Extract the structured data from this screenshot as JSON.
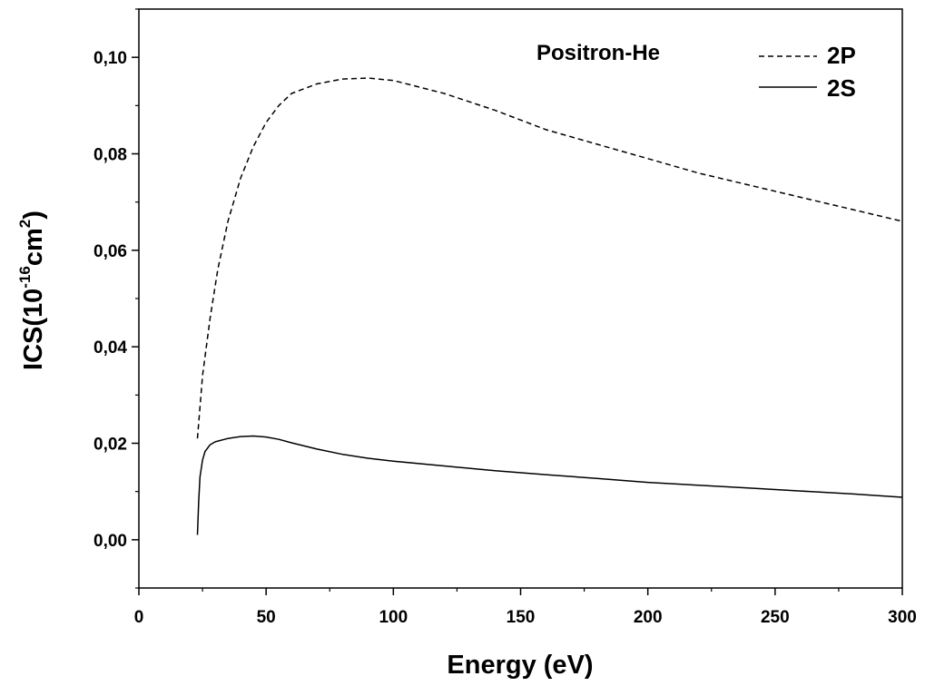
{
  "chart_data": {
    "type": "line",
    "title": "",
    "annotation": "Positron-He",
    "xlabel": "Energy (eV)",
    "ylabel": {
      "prefix": "ICS(10",
      "exp1": "-16",
      "mid": "cm",
      "exp2": "2",
      "suffix": ")"
    },
    "xlim": [
      0,
      300
    ],
    "ylim": [
      -0.01,
      0.11
    ],
    "x_ticks": [
      0,
      50,
      100,
      150,
      200,
      250,
      300
    ],
    "x_tick_labels": [
      "0",
      "50",
      "100",
      "150",
      "200",
      "250",
      "300"
    ],
    "y_ticks": [
      0.0,
      0.02,
      0.04,
      0.06,
      0.08,
      0.1
    ],
    "y_tick_labels": [
      "0,00",
      "0,02",
      "0,04",
      "0,06",
      "0,08",
      "0,10"
    ],
    "grid": false,
    "legend_position": "top-right",
    "series": [
      {
        "name": "2P",
        "style": "dashed",
        "x": [
          23,
          25,
          28,
          31,
          35,
          40,
          45,
          50,
          55,
          60,
          70,
          80,
          90,
          100,
          120,
          140,
          160,
          180,
          200,
          220,
          240,
          260,
          280,
          300
        ],
        "y": [
          0.021,
          0.034,
          0.046,
          0.056,
          0.066,
          0.075,
          0.0815,
          0.0865,
          0.09,
          0.0925,
          0.0945,
          0.0955,
          0.0957,
          0.0952,
          0.0925,
          0.089,
          0.085,
          0.082,
          0.079,
          0.076,
          0.0735,
          0.071,
          0.0685,
          0.066
        ]
      },
      {
        "name": "2S",
        "style": "solid",
        "x": [
          23,
          23.5,
          24,
          25,
          26,
          28,
          30,
          35,
          40,
          45,
          50,
          55,
          60,
          70,
          80,
          90,
          100,
          120,
          140,
          160,
          180,
          200,
          220,
          240,
          260,
          280,
          300
        ],
        "y": [
          0.001,
          0.008,
          0.013,
          0.0165,
          0.0183,
          0.0197,
          0.0203,
          0.021,
          0.0214,
          0.0215,
          0.0213,
          0.0208,
          0.0201,
          0.0188,
          0.0177,
          0.0169,
          0.0163,
          0.0153,
          0.0143,
          0.0135,
          0.0127,
          0.0119,
          0.0113,
          0.0107,
          0.0101,
          0.0095,
          0.0088
        ]
      }
    ]
  }
}
